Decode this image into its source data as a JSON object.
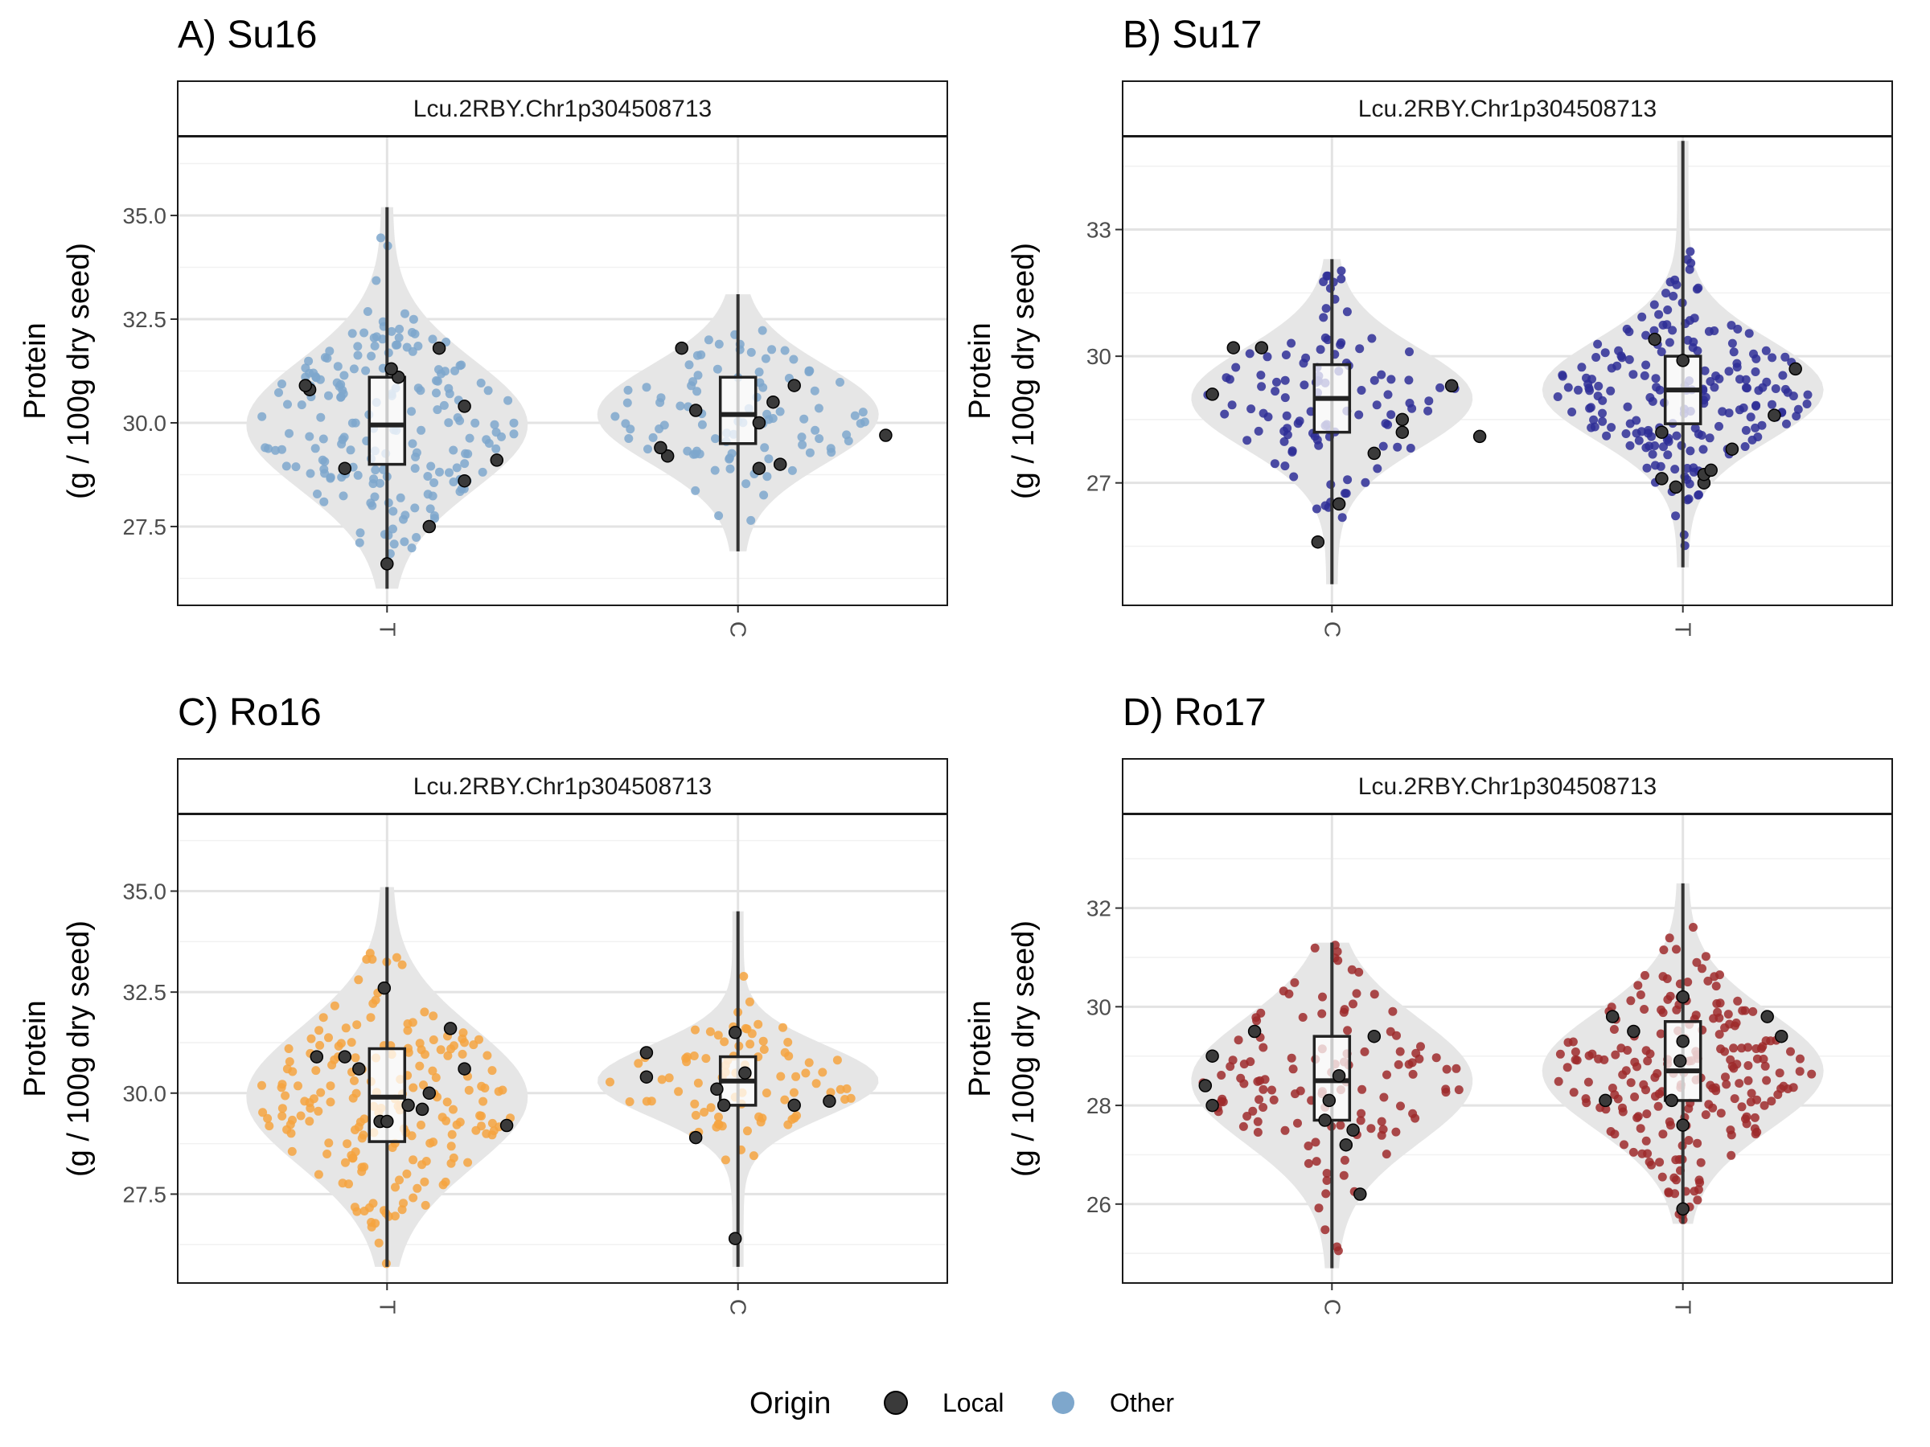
{
  "legend": {
    "title": "Origin",
    "items": [
      {
        "label": "Local",
        "color": "#3a3a3a"
      },
      {
        "label": "Other",
        "color": "#7ea7cc"
      }
    ]
  },
  "chart_data": [
    {
      "type": "violin",
      "title": "A) Su16",
      "facet_label": "Lcu.2RBY.Chr1p304508713",
      "ylabel_line1": "Protein",
      "ylabel_line2": "(g / 100g dry seed)",
      "ylim": [
        25.6,
        36.9
      ],
      "yticks": [
        27.5,
        30.0,
        32.5,
        35.0
      ],
      "ytick_labels": [
        "27.5",
        "30.0",
        "32.5",
        "35.0"
      ],
      "point_color": "#7ea7cc",
      "groups": [
        {
          "label": "T",
          "min": 26.0,
          "q1": 29.0,
          "median": 29.95,
          "q3": 31.1,
          "max": 35.2,
          "n_other": 190,
          "local_points": [
            [
              26.6,
              0.0
            ],
            [
              27.5,
              0.3
            ],
            [
              28.6,
              0.55
            ],
            [
              28.9,
              -0.3
            ],
            [
              29.1,
              0.78
            ],
            [
              30.4,
              0.55
            ],
            [
              30.8,
              -0.55
            ],
            [
              30.9,
              -0.58
            ],
            [
              31.1,
              0.08
            ],
            [
              31.3,
              0.03
            ],
            [
              31.8,
              0.37
            ]
          ]
        },
        {
          "label": "C",
          "min": 26.9,
          "q1": 29.5,
          "median": 30.2,
          "q3": 31.1,
          "max": 33.1,
          "n_other": 95,
          "local_points": [
            [
              28.9,
              0.15
            ],
            [
              29.0,
              0.3
            ],
            [
              29.2,
              -0.5
            ],
            [
              29.4,
              -0.55
            ],
            [
              29.7,
              1.05
            ],
            [
              30.0,
              0.15
            ],
            [
              30.3,
              -0.3
            ],
            [
              30.5,
              0.25
            ],
            [
              30.9,
              0.4
            ],
            [
              31.8,
              -0.4
            ]
          ]
        }
      ]
    },
    {
      "type": "violin",
      "title": "B) Su17",
      "facet_label": "Lcu.2RBY.Chr1p304508713",
      "ylabel_line1": "Protein",
      "ylabel_line2": "(g / 100g dry seed)",
      "ylim": [
        24.1,
        35.2
      ],
      "yticks": [
        27,
        30,
        33
      ],
      "ytick_labels": [
        "27",
        "30",
        "33"
      ],
      "point_color": "#2e2e96",
      "groups": [
        {
          "label": "C",
          "min": 24.6,
          "q1": 28.2,
          "median": 29.0,
          "q3": 29.8,
          "max": 32.3,
          "n_other": 110,
          "local_points": [
            [
              25.6,
              -0.1
            ],
            [
              26.5,
              0.05
            ],
            [
              27.7,
              0.3
            ],
            [
              28.2,
              0.5
            ],
            [
              28.5,
              0.5
            ],
            [
              28.1,
              1.05
            ],
            [
              29.1,
              -0.85
            ],
            [
              29.3,
              0.85
            ],
            [
              30.2,
              -0.7
            ],
            [
              30.2,
              -0.5
            ]
          ]
        },
        {
          "label": "T",
          "min": 25.0,
          "q1": 28.4,
          "median": 29.2,
          "q3": 30.0,
          "max": 35.1,
          "n_other": 200,
          "local_points": [
            [
              26.9,
              -0.05
            ],
            [
              27.0,
              0.15
            ],
            [
              27.1,
              -0.15
            ],
            [
              27.2,
              0.15
            ],
            [
              27.3,
              0.2
            ],
            [
              27.8,
              0.35
            ],
            [
              28.2,
              -0.15
            ],
            [
              28.6,
              0.65
            ],
            [
              29.7,
              0.8
            ],
            [
              29.9,
              0.0
            ],
            [
              30.4,
              -0.2
            ]
          ]
        }
      ]
    },
    {
      "type": "violin",
      "title": "C) Ro16",
      "facet_label": "Lcu.2RBY.Chr1p304508713",
      "ylabel_line1": "Protein",
      "ylabel_line2": "(g / 100g dry seed)",
      "ylim": [
        25.3,
        36.9
      ],
      "yticks": [
        27.5,
        30.0,
        32.5,
        35.0
      ],
      "ytick_labels": [
        "27.5",
        "30.0",
        "32.5",
        "35.0"
      ],
      "point_color": "#f4a340",
      "groups": [
        {
          "label": "T",
          "min": 25.7,
          "q1": 28.8,
          "median": 29.9,
          "q3": 31.1,
          "max": 35.1,
          "n_other": 195,
          "local_points": [
            [
              29.3,
              -0.05
            ],
            [
              29.3,
              0.0
            ],
            [
              29.6,
              0.25
            ],
            [
              29.7,
              0.15
            ],
            [
              30.0,
              0.3
            ],
            [
              30.6,
              0.55
            ],
            [
              30.6,
              -0.2
            ],
            [
              30.9,
              -0.3
            ],
            [
              30.9,
              -0.5
            ],
            [
              31.6,
              0.45
            ],
            [
              32.6,
              -0.02
            ],
            [
              29.2,
              0.85
            ]
          ]
        },
        {
          "label": "C",
          "min": 25.7,
          "q1": 29.7,
          "median": 30.3,
          "q3": 30.9,
          "max": 34.5,
          "n_other": 85,
          "local_points": [
            [
              26.4,
              -0.02
            ],
            [
              28.9,
              -0.3
            ],
            [
              29.7,
              0.4
            ],
            [
              29.7,
              -0.1
            ],
            [
              29.8,
              0.65
            ],
            [
              30.1,
              -0.15
            ],
            [
              30.4,
              -0.65
            ],
            [
              30.5,
              0.05
            ],
            [
              31.0,
              -0.65
            ],
            [
              31.5,
              -0.02
            ]
          ]
        }
      ]
    },
    {
      "type": "violin",
      "title": "D) Ro17",
      "facet_label": "Lcu.2RBY.Chr1p304508713",
      "ylabel_line1": "Protein",
      "ylabel_line2": "(g / 100g dry seed)",
      "ylim": [
        24.4,
        33.9
      ],
      "yticks": [
        26,
        28,
        30,
        32
      ],
      "ytick_labels": [
        "26",
        "28",
        "30",
        "32"
      ],
      "point_color": "#9e2a2b",
      "groups": [
        {
          "label": "C",
          "min": 24.7,
          "q1": 27.7,
          "median": 28.5,
          "q3": 29.4,
          "max": 31.3,
          "n_other": 120,
          "local_points": [
            [
              26.2,
              0.2
            ],
            [
              27.2,
              0.1
            ],
            [
              27.5,
              0.15
            ],
            [
              27.7,
              -0.05
            ],
            [
              28.0,
              -0.85
            ],
            [
              28.1,
              -0.02
            ],
            [
              28.4,
              -0.9
            ],
            [
              28.6,
              0.05
            ],
            [
              29.0,
              -0.85
            ],
            [
              29.4,
              0.3
            ],
            [
              29.5,
              -0.55
            ]
          ]
        },
        {
          "label": "T",
          "min": 25.6,
          "q1": 28.1,
          "median": 28.7,
          "q3": 29.7,
          "max": 32.5,
          "n_other": 215,
          "local_points": [
            [
              25.9,
              0.0
            ],
            [
              27.6,
              0.0
            ],
            [
              28.1,
              -0.08
            ],
            [
              28.1,
              -0.55
            ],
            [
              28.9,
              -0.02
            ],
            [
              29.3,
              0.0
            ],
            [
              29.4,
              0.7
            ],
            [
              29.5,
              -0.35
            ],
            [
              29.8,
              -0.5
            ],
            [
              29.8,
              0.6
            ],
            [
              30.2,
              0.0
            ]
          ]
        }
      ]
    }
  ]
}
